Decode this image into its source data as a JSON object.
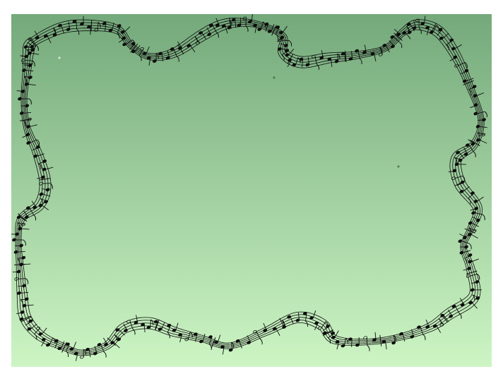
{
  "image": {
    "subject": "music-staff-ribbon-border",
    "frame_color": "#ffffff",
    "colors": {
      "gradient_top": "#74a97b",
      "gradient_bottom": "#cdf5c4",
      "ink": "#0d0d0d"
    },
    "ribbon_style": "five-line staff ribbon with scattered notes"
  }
}
